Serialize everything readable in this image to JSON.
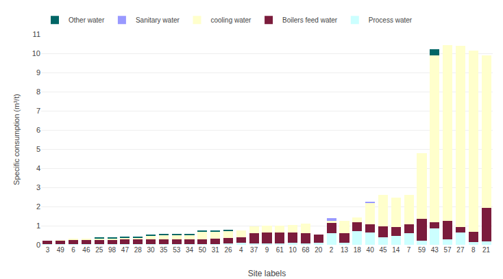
{
  "chart_data": {
    "type": "bar",
    "stacked": true,
    "xlabel": "Site labels",
    "ylabel": "Specific consumption (m³/t)",
    "categories": [
      "3",
      "49",
      "6",
      "46",
      "25",
      "98",
      "47",
      "28",
      "30",
      "35",
      "53",
      "34",
      "50",
      "31",
      "26",
      "4",
      "37",
      "9",
      "61",
      "10",
      "68",
      "20",
      "2",
      "13",
      "18",
      "40",
      "45",
      "14",
      "7",
      "59",
      "43",
      "57",
      "27",
      "8",
      "21"
    ],
    "series": [
      {
        "name": "Process water",
        "color": "#ccffff",
        "values": [
          0.02,
          0.02,
          0.02,
          0.03,
          0.03,
          0.02,
          0.02,
          0.03,
          0.02,
          0.05,
          0.04,
          0.03,
          0.05,
          0.04,
          0.08,
          0.1,
          0.07,
          0.08,
          0.08,
          0.1,
          0.08,
          0.1,
          0.6,
          0.1,
          0.7,
          0.65,
          0.4,
          0.45,
          0.6,
          0.22,
          0.85,
          0.3,
          0.65,
          0.15,
          0.18
        ]
      },
      {
        "name": "Boilers feed water",
        "color": "#7b1c3c",
        "values": [
          0.18,
          0.2,
          0.25,
          0.22,
          0.22,
          0.24,
          0.26,
          0.25,
          0.27,
          0.24,
          0.26,
          0.24,
          0.25,
          0.28,
          0.28,
          0.28,
          0.52,
          0.55,
          0.57,
          0.55,
          0.52,
          0.42,
          0.55,
          0.52,
          0.47,
          0.42,
          0.55,
          0.48,
          0.47,
          1.15,
          0.33,
          0.95,
          0.28,
          0.52,
          1.75
        ]
      },
      {
        "name": "cooling water",
        "color": "#ffffcc",
        "values": [
          0.0,
          0.03,
          0.05,
          0.06,
          0.08,
          0.08,
          0.08,
          0.08,
          0.18,
          0.22,
          0.22,
          0.25,
          0.38,
          0.36,
          0.36,
          0.38,
          0.38,
          0.38,
          0.36,
          0.38,
          0.5,
          0.0,
          0.1,
          0.62,
          0.25,
          1.1,
          1.65,
          1.52,
          1.52,
          3.4,
          8.72,
          9.18,
          9.48,
          9.48,
          7.95
        ]
      },
      {
        "name": "Sanitary water",
        "color": "#9999ff",
        "values": [
          0.0,
          0.0,
          0.0,
          0.0,
          0.0,
          0.0,
          0.0,
          0.0,
          0.0,
          0.0,
          0.0,
          0.0,
          0.0,
          0.0,
          0.0,
          0.0,
          0.0,
          0.0,
          0.0,
          0.0,
          0.0,
          0.0,
          0.13,
          0.0,
          0.0,
          0.08,
          0.0,
          0.0,
          0.0,
          0.0,
          0.0,
          0.0,
          0.0,
          0.0,
          0.0
        ]
      },
      {
        "name": "Other water",
        "color": "#006666",
        "values": [
          0.0,
          0.0,
          0.0,
          0.0,
          0.05,
          0.05,
          0.05,
          0.05,
          0.05,
          0.05,
          0.05,
          0.05,
          0.05,
          0.04,
          0.05,
          0.0,
          0.0,
          0.0,
          0.0,
          0.0,
          0.0,
          0.0,
          0.0,
          0.0,
          0.0,
          0.0,
          0.0,
          0.0,
          0.0,
          0.0,
          0.3,
          0.0,
          0.0,
          0.0,
          0.0
        ]
      }
    ],
    "ylim": [
      0,
      11
    ],
    "yticks": [
      0,
      1,
      2,
      3,
      4,
      5,
      6,
      7,
      8,
      9,
      10,
      11
    ],
    "grid": true,
    "legend": "upper left"
  }
}
